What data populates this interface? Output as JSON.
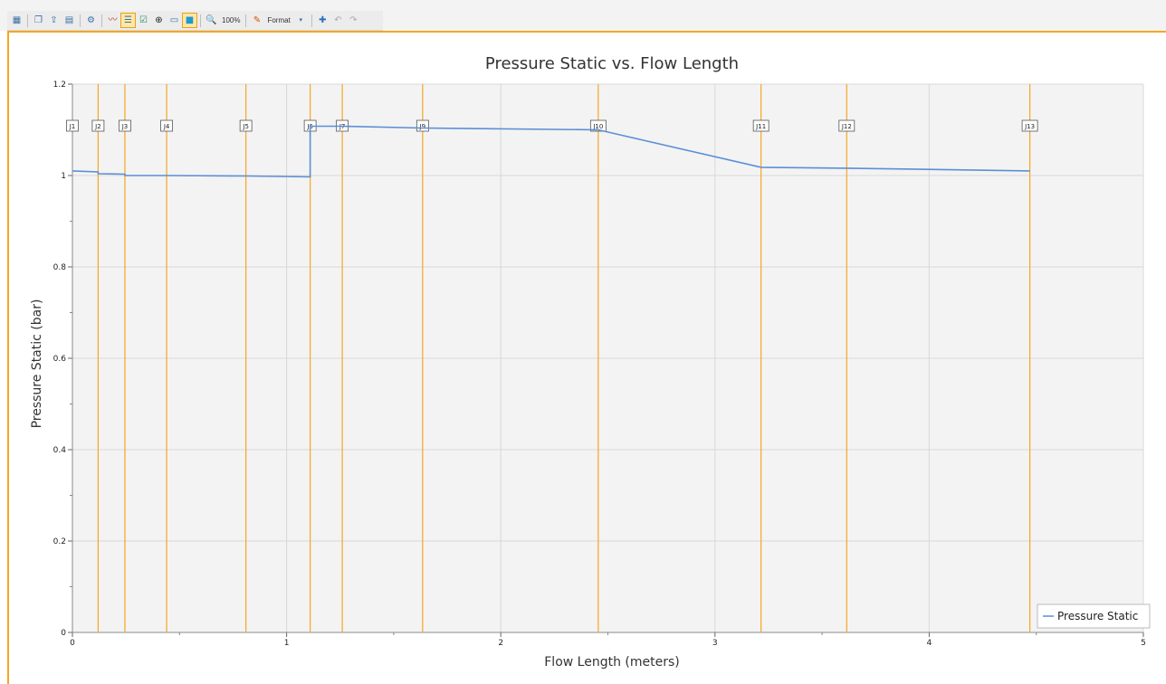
{
  "toolbar": {
    "zoom_label": "100%",
    "format_label": "Format",
    "icons": [
      "new-graph-icon",
      "copy-icon",
      "export-icon",
      "table-icon",
      "settings-icon",
      "curve-icon",
      "legend-icon",
      "check-icon",
      "crosshair-icon",
      "ruler-icon",
      "select-box-icon",
      "zoom-icon",
      "format-icon",
      "add-icon",
      "undo-icon",
      "redo-icon"
    ]
  },
  "colors": {
    "accent": "#f5a623",
    "series": "#5b8fd6",
    "marker": "#f5a623",
    "plot_bg": "#f3f3f3"
  },
  "chart_data": {
    "type": "line",
    "title": "Pressure Static vs. Flow Length",
    "xlabel": "Flow Length (meters)",
    "ylabel": "Pressure Static (bar)",
    "xlim": [
      0,
      5
    ],
    "ylim": [
      0,
      1.2
    ],
    "xticks": [
      "0",
      "1",
      "2",
      "3",
      "4",
      "5"
    ],
    "yticks": [
      "0",
      "0.2",
      "0.4",
      "0.6",
      "0.8",
      "1",
      "1.2"
    ],
    "grid": true,
    "legend": "bottom-right",
    "series": [
      {
        "name": "Pressure Static",
        "x": [
          0,
          0.12,
          0.12,
          0.245,
          0.245,
          0.44,
          0.81,
          1.11,
          1.11,
          1.26,
          1.26,
          1.635,
          2.455,
          3.215,
          3.615,
          4.47
        ],
        "y": [
          1.01,
          1.008,
          1.004,
          1.003,
          1.0,
          1.0,
          0.999,
          0.997,
          1.108,
          1.108,
          1.108,
          1.104,
          1.1,
          1.018,
          1.016,
          1.01
        ]
      }
    ],
    "markers": [
      {
        "label": "J1",
        "x": 0.0
      },
      {
        "label": "J2",
        "x": 0.12
      },
      {
        "label": "J3",
        "x": 0.245
      },
      {
        "label": "J4",
        "x": 0.44
      },
      {
        "label": "J5",
        "x": 0.81
      },
      {
        "label": "J6",
        "x": 1.11
      },
      {
        "label": "J7",
        "x": 1.26
      },
      {
        "label": "J9",
        "x": 1.635
      },
      {
        "label": "J10",
        "x": 2.455
      },
      {
        "label": "J11",
        "x": 3.215
      },
      {
        "label": "J12",
        "x": 3.615
      },
      {
        "label": "J13",
        "x": 4.47
      }
    ]
  }
}
